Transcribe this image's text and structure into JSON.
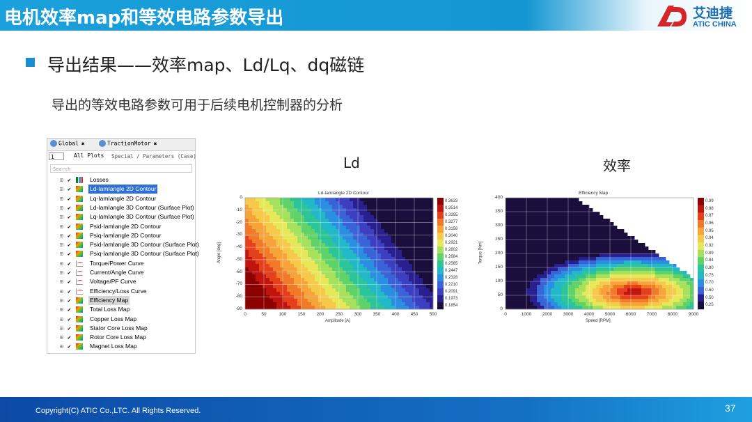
{
  "header": {
    "title": "电机效率map和等效电路参数导出",
    "logo_cn": "艾迪捷",
    "logo_en": "ATIC CHINA"
  },
  "heading": "导出结果——效率map、Ld/Lq、dq磁链",
  "subtext": "导出的等效电路参数可用于后续电机控制器的分析",
  "panel": {
    "tabs": [
      {
        "label": "Global",
        "close": "✖"
      },
      {
        "label": "TractionMotor",
        "close": "✖"
      }
    ],
    "spin_value": "1",
    "toolbar_label": "All Plots",
    "toolbar_crumb": "Special / Parameters (Case)",
    "search_placeholder": "Search",
    "items": [
      {
        "label": "Losses",
        "icon": "bar-chart-icon"
      },
      {
        "label": "Ld-IamIangle 2D Contour",
        "icon": "contour-icon",
        "selected": true
      },
      {
        "label": "Lq-IamIangle 2D Contour",
        "icon": "contour-icon"
      },
      {
        "label": "Ld-IamIangle 3D Contour (Surface Plot)",
        "icon": "surface-icon"
      },
      {
        "label": "Lq-IamIangle 3D Contour (Surface Plot)",
        "icon": "surface-icon"
      },
      {
        "label": "Psid-IamIangle 2D Contour",
        "icon": "contour-icon"
      },
      {
        "label": "Psiq-IamIangle 2D Contour",
        "icon": "contour-icon"
      },
      {
        "label": "Psid-IamIangle 3D Contour (Surface Plot)",
        "icon": "surface-icon"
      },
      {
        "label": "Psiq-IamIangle 3D Contour (Surface Plot)",
        "icon": "surface-icon"
      },
      {
        "label": "Torque/Power Curve",
        "icon": "curve-icon"
      },
      {
        "label": "Current/Angle Curve",
        "icon": "curve-icon"
      },
      {
        "label": "Voltage/PF Curve",
        "icon": "curve-icon"
      },
      {
        "label": "Efficiency/Loss Curve",
        "icon": "curve-icon"
      },
      {
        "label": "Efficiency Map",
        "icon": "contour-icon",
        "highlighted": true
      },
      {
        "label": "Total Loss Map",
        "icon": "contour-icon"
      },
      {
        "label": "Copper Loss Map",
        "icon": "contour-icon"
      },
      {
        "label": "Stator Core Loss Map",
        "icon": "contour-icon"
      },
      {
        "label": "Rotor Core Loss Map",
        "icon": "contour-icon"
      },
      {
        "label": "Magnet Loss Map",
        "icon": "contour-icon"
      }
    ]
  },
  "chart_data": [
    {
      "type": "heatmap",
      "caption": "Ld",
      "title": "Ld-IamIangle 2D Contour",
      "xlabel": "Amplitude [A]",
      "ylabel": "Angle [deg]",
      "x_ticks": [
        "0",
        "50",
        "100",
        "150",
        "200",
        "250",
        "300",
        "350",
        "400",
        "450",
        "500"
      ],
      "y_ticks": [
        "0",
        "-10",
        "-20",
        "-30",
        "-40",
        "-50",
        "-60",
        "-70",
        "-80",
        "-90"
      ],
      "xlim": [
        0,
        500
      ],
      "ylim": [
        -90,
        0
      ],
      "colorbar": [
        "0.3633",
        "0.3514",
        "0.3395",
        "0.3277",
        "0.3158",
        "0.3040",
        "0.2921",
        "0.2802",
        "0.2684",
        "0.2565",
        "0.2447",
        "0.2328",
        "0.2210",
        "0.2091",
        "0.1973",
        "0.1854"
      ],
      "colors": [
        "#8b0000",
        "#c0150e",
        "#e4401c",
        "#f07a2a",
        "#f6a43a",
        "#f7c94b",
        "#e6e85a",
        "#a5e15c",
        "#5fd26a",
        "#2ec49a",
        "#22b8c8",
        "#2a8fe0",
        "#3b63d8",
        "#3b3fc0",
        "#2a1f8f",
        "#1a0e3d"
      ],
      "grid": true
    },
    {
      "type": "heatmap",
      "caption": "效率",
      "title": "Efficiency Map",
      "xlabel": "Speed [RPM]",
      "ylabel": "Torque [Nm]",
      "x_ticks": [
        "0",
        "1000",
        "2000",
        "3000",
        "4000",
        "5000",
        "6000",
        "7000",
        "8000",
        "9000"
      ],
      "y_ticks": [
        "400",
        "350",
        "300",
        "250",
        "200",
        "150",
        "100",
        "50",
        "0"
      ],
      "xlim": [
        0,
        9000
      ],
      "ylim": [
        0,
        400
      ],
      "colorbar": [
        "0.99",
        "0.98",
        "0.97",
        "0.96",
        "0.95",
        "0.94",
        "0.92",
        "0.89",
        "0.84",
        "0.80",
        "0.75",
        "0.70",
        "0.60",
        "0.50",
        "0.25"
      ],
      "colors": [
        "#8b0000",
        "#c0150e",
        "#e4401c",
        "#f07a2a",
        "#f6a43a",
        "#f7c94b",
        "#e6e85a",
        "#a5e15c",
        "#5fd26a",
        "#2ec49a",
        "#22b8c8",
        "#2a8fe0",
        "#3b63d8",
        "#2a1f8f",
        "#1a0e3d"
      ],
      "grid": true
    }
  ],
  "footer": {
    "copyright": "Copyright(C) ATIC Co.,LTC. All Rights Reserved.",
    "page": "37"
  }
}
